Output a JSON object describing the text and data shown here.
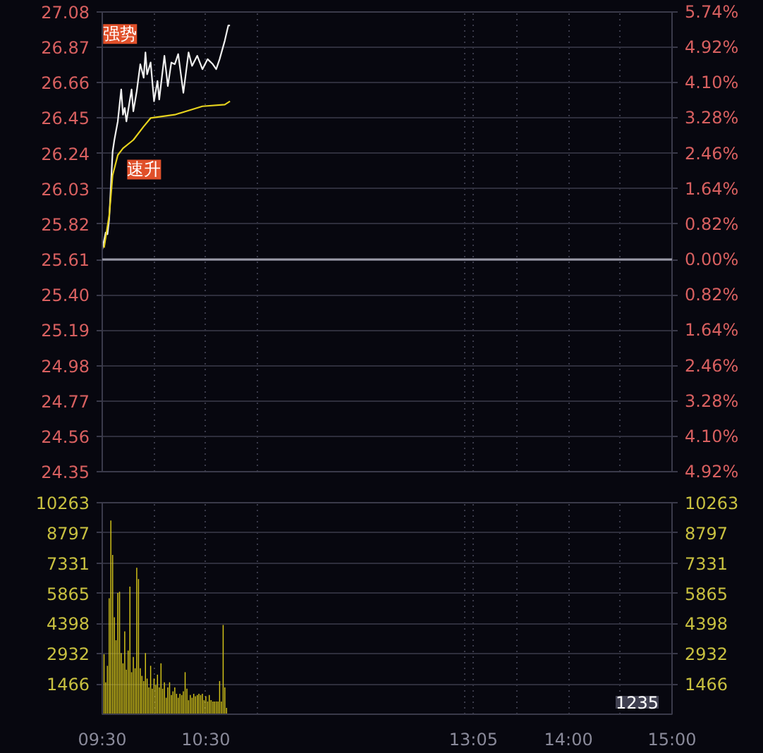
{
  "chart_data": [
    {
      "type": "line",
      "xlim": [
        9.5,
        15
      ],
      "xticks": [
        {
          "value": 9.5,
          "label": null
        },
        {
          "value": 10,
          "label": null
        },
        {
          "value": 10.5,
          "label": null
        },
        {
          "value": 11,
          "label": null
        },
        {
          "value": 13,
          "label": null
        },
        {
          "value": 13.083,
          "label": null
        },
        {
          "value": 13.5,
          "label": null
        },
        {
          "value": 14,
          "label": null
        },
        {
          "value": 14.5,
          "label": null
        },
        {
          "value": 15,
          "label": null
        }
      ],
      "ylim": [
        24.35,
        27.08
      ],
      "yticks": [
        {
          "value": 27.08,
          "label": "27.08"
        },
        {
          "value": 26.87,
          "label": "26.87"
        },
        {
          "value": 26.66,
          "label": "26.66"
        },
        {
          "value": 26.45,
          "label": "26.45"
        },
        {
          "value": 26.24,
          "label": "26.24"
        },
        {
          "value": 26.03,
          "label": "26.03"
        },
        {
          "value": 25.82,
          "label": "25.82"
        },
        {
          "value": 25.61,
          "label": "25.61"
        },
        {
          "value": 25.4,
          "label": "25.40"
        },
        {
          "value": 25.19,
          "label": "25.19"
        },
        {
          "value": 24.98,
          "label": "24.98"
        },
        {
          "value": 24.77,
          "label": "24.77"
        },
        {
          "value": 24.56,
          "label": "24.56"
        },
        {
          "value": 24.35,
          "label": "24.35"
        }
      ],
      "y2lim": [
        -4.92,
        5.74
      ],
      "y2ticks": [
        {
          "value": 5.74,
          "label": "5.74%"
        },
        {
          "value": 4.92,
          "label": "4.92%"
        },
        {
          "value": 4.1,
          "label": "4.10%"
        },
        {
          "value": 3.28,
          "label": "3.28%"
        },
        {
          "value": 2.46,
          "label": "2.46%"
        },
        {
          "value": 1.64,
          "label": "1.64%"
        },
        {
          "value": 0.82,
          "label": "0.82%"
        },
        {
          "value": 0,
          "label": "0.00%"
        },
        {
          "value": -0.82,
          "label": "0.82%"
        },
        {
          "value": -1.64,
          "label": "1.64%"
        },
        {
          "value": -2.46,
          "label": "2.46%"
        },
        {
          "value": -3.28,
          "label": "3.28%"
        },
        {
          "value": -4.1,
          "label": "4.10%"
        },
        {
          "value": -4.92,
          "label": "4.92%"
        }
      ],
      "ref_lines": [
        {
          "axis": "y",
          "value": 25.61,
          "color": "#9a9aa8"
        }
      ],
      "grid": true,
      "tick_labels": "y",
      "series": [
        {
          "color": "#f0f0f0",
          "x": [
            9.5,
            9.533,
            9.55,
            9.567,
            9.6,
            9.617,
            9.65,
            9.683,
            9.7,
            9.717,
            9.733,
            9.783,
            9.8,
            9.833,
            9.867,
            9.9,
            9.917,
            9.933,
            9.967,
            10,
            10.033,
            10.05,
            10.1,
            10.133,
            10.167,
            10.2,
            10.233,
            10.283,
            10.333,
            10.367,
            10.417,
            10.467,
            10.517,
            10.567,
            10.6,
            10.633,
            10.683,
            10.717,
            10.733
          ],
          "values": [
            25.67,
            25.77,
            25.76,
            25.85,
            26.25,
            26.32,
            26.43,
            26.62,
            26.47,
            26.51,
            26.43,
            26.62,
            26.49,
            26.61,
            26.77,
            26.69,
            26.84,
            26.71,
            26.78,
            26.55,
            26.67,
            26.56,
            26.82,
            26.64,
            26.78,
            26.77,
            26.83,
            26.6,
            26.84,
            26.76,
            26.82,
            26.74,
            26.8,
            26.77,
            26.74,
            26.8,
            26.91,
            27.0,
            27.0
          ]
        },
        {
          "color": "#e6d21e",
          "x": [
            9.517,
            9.567,
            9.6,
            9.65,
            9.7,
            9.8,
            9.9,
            9.967,
            10.2,
            10.467,
            10.683,
            10.733
          ],
          "values": [
            25.68,
            25.87,
            26.11,
            26.23,
            26.27,
            26.32,
            26.4,
            26.45,
            26.47,
            26.52,
            26.53,
            26.55
          ]
        }
      ],
      "annotations": [
        {
          "text": "强势",
          "x": 9.917,
          "y": 26.84
        },
        {
          "text": "速升",
          "x": 9.7,
          "y": 26.27
        }
      ]
    },
    {
      "type": "bar",
      "xlim": [
        9.5,
        15
      ],
      "xticks": [
        {
          "value": 9.5,
          "label": "09:30"
        },
        {
          "value": 10,
          "label": null
        },
        {
          "value": 10.5,
          "label": "10:30"
        },
        {
          "value": 11,
          "label": null
        },
        {
          "value": 13,
          "label": null
        },
        {
          "value": 13.083,
          "label": "13:05"
        },
        {
          "value": 13.5,
          "label": null
        },
        {
          "value": 14,
          "label": "14:00"
        },
        {
          "value": 14.5,
          "label": null
        },
        {
          "value": 15,
          "label": "15:00"
        }
      ],
      "ylim": [
        0,
        10263
      ],
      "yticks": [
        1466,
        2932,
        4398,
        5865,
        7331,
        8797,
        10263
      ],
      "y2lim": [
        0,
        10263
      ],
      "y2ticks": [
        1466,
        2932,
        4398,
        5865,
        7331,
        8797,
        10263
      ],
      "grid": true,
      "color": "#d4c419",
      "x": [
        9.517,
        9.533,
        9.55,
        9.567,
        9.583,
        9.6,
        9.617,
        9.633,
        9.65,
        9.667,
        9.683,
        9.7,
        9.717,
        9.733,
        9.75,
        9.767,
        9.783,
        9.8,
        9.817,
        9.833,
        9.85,
        9.867,
        9.883,
        9.9,
        9.917,
        9.933,
        9.95,
        9.967,
        9.983,
        10,
        10.017,
        10.033,
        10.05,
        10.067,
        10.083,
        10.1,
        10.117,
        10.133,
        10.15,
        10.167,
        10.183,
        10.2,
        10.217,
        10.233,
        10.25,
        10.267,
        10.283,
        10.3,
        10.317,
        10.333,
        10.35,
        10.367,
        10.383,
        10.4,
        10.417,
        10.433,
        10.45,
        10.467,
        10.483,
        10.5,
        10.517,
        10.533,
        10.55,
        10.567,
        10.583,
        10.6,
        10.617,
        10.633,
        10.65,
        10.667,
        10.683,
        10.7
      ],
      "values": [
        2910,
        1550,
        2350,
        5630,
        9400,
        7730,
        4700,
        3590,
        5880,
        5940,
        2970,
        2470,
        4020,
        2160,
        3090,
        6190,
        2040,
        2780,
        2230,
        7110,
        6560,
        2230,
        1860,
        1610,
        2970,
        1730,
        1300,
        2350,
        1240,
        1730,
        1420,
        1920,
        1300,
        2470,
        1240,
        1550,
        800,
        1300,
        1550,
        930,
        1110,
        1300,
        990,
        800,
        990,
        930,
        1110,
        2040,
        1240,
        680,
        930,
        800,
        990,
        870,
        930,
        990,
        930,
        990,
        680,
        870,
        620,
        930,
        680,
        620,
        620,
        620,
        620,
        1610,
        620,
        4330,
        1300,
        310
      ],
      "annotations": [
        "1235"
      ]
    }
  ]
}
